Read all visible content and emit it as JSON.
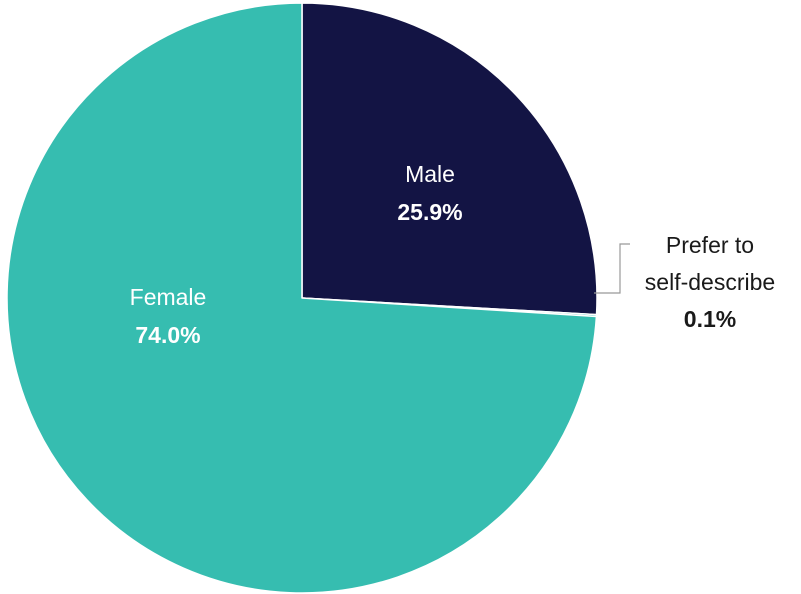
{
  "chart_data": {
    "type": "pie",
    "start_angle": "12 o'clock",
    "direction": "clockwise",
    "legend": "none",
    "slices": [
      {
        "label": "Male",
        "value": 25.9,
        "value_text": "25.9%",
        "color": "#131444",
        "label_color": "#ffffff"
      },
      {
        "label": "Prefer to self-describe",
        "label_lines": [
          "Prefer to",
          "self-describe"
        ],
        "value": 0.1,
        "value_text": "0.1%",
        "color": "#36bdb0",
        "label_color": "#1a1a1a"
      },
      {
        "label": "Female",
        "value": 74.0,
        "value_text": "74.0%",
        "color": "#36bdb0",
        "label_color": "#ffffff"
      }
    ]
  }
}
